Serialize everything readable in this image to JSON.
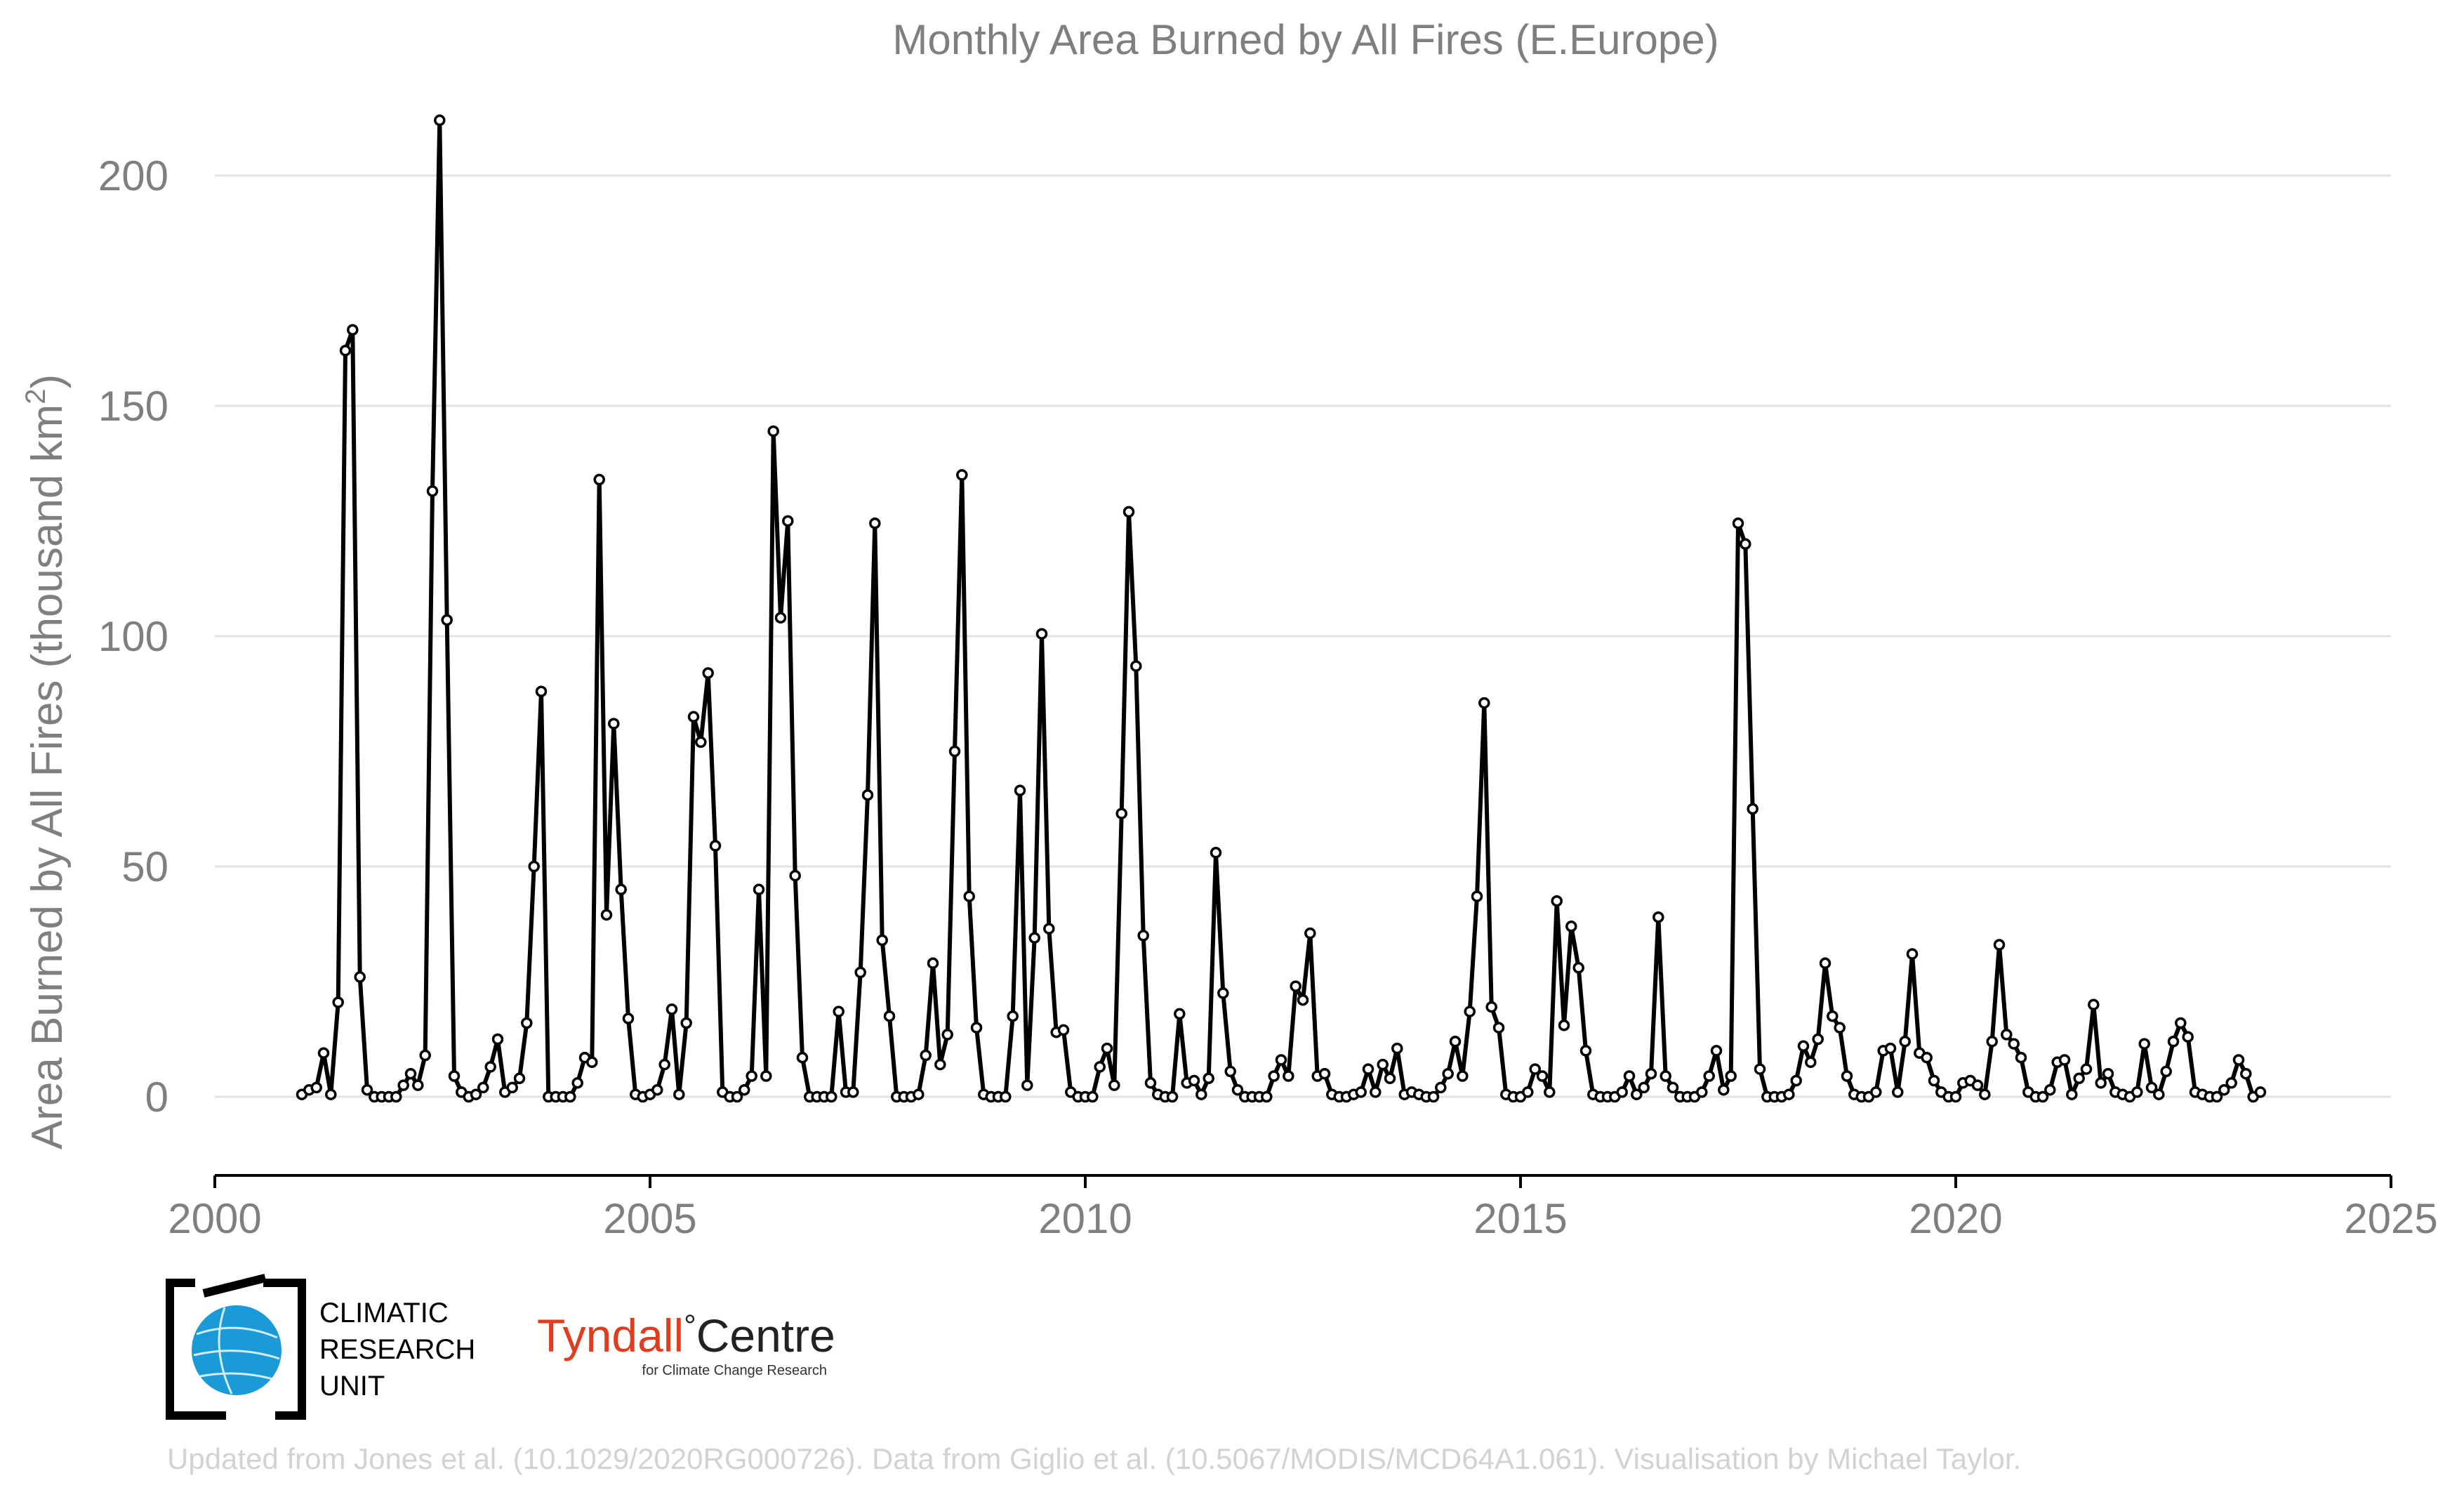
{
  "chart_data": {
    "type": "line",
    "title": "Monthly Area Burned by All Fires (E.Europe)",
    "ylabel": "Area Burned by All Fires (thousand km²)",
    "ylabel_parts": {
      "main": "Area Burned by All Fires (thousand km",
      "sup": "2",
      "close": ")"
    },
    "xlabel": "",
    "xlim": [
      2000,
      2025
    ],
    "ylim": [
      -17,
      217
    ],
    "x_ticks": [
      "2000",
      "2005",
      "2010",
      "2015",
      "2020",
      "2025"
    ],
    "y_ticks": [
      "0",
      "50",
      "100",
      "150",
      "200"
    ],
    "grid": "horizontal",
    "line_color": "#000000",
    "marker": "open-circle",
    "start": "2001-01",
    "values": [
      0.5,
      1.5,
      2,
      9.5,
      0.5,
      20.5,
      162,
      166.5,
      26,
      1.5,
      0,
      0,
      0,
      0,
      2.5,
      5,
      2.5,
      9,
      131.5,
      212,
      103.5,
      4.5,
      1,
      0,
      0.5,
      2,
      6.5,
      12.5,
      1,
      2,
      4,
      16,
      50,
      88,
      0,
      0,
      0,
      0,
      3,
      8.5,
      7.5,
      134,
      39.5,
      81,
      45,
      17,
      0.5,
      0,
      0.5,
      1.5,
      7,
      19,
      0.5,
      16,
      82.5,
      77,
      92,
      54.5,
      1,
      0,
      0,
      1.5,
      4.5,
      45,
      4.5,
      144.5,
      104,
      125,
      48,
      8.5,
      0,
      0,
      0,
      0,
      18.5,
      1,
      1,
      27,
      65.5,
      124.5,
      34,
      17.5,
      0,
      0,
      0,
      0.5,
      9,
      29,
      7,
      13.5,
      75,
      135,
      43.5,
      15,
      0.5,
      0,
      0,
      0,
      17.5,
      66.5,
      2.5,
      34.5,
      100.5,
      36.5,
      14,
      14.5,
      1,
      0,
      0,
      0,
      6.5,
      10.5,
      2.5,
      61.5,
      127,
      93.5,
      35,
      3,
      0.5,
      0,
      0,
      18,
      3,
      3.5,
      0.5,
      4,
      53,
      22.5,
      5.5,
      1.5,
      0,
      0,
      0,
      0,
      4.5,
      8,
      4.5,
      24,
      21,
      35.5,
      4.5,
      5,
      0.5,
      0,
      0,
      0.5,
      1,
      6,
      1,
      7,
      4,
      10.5,
      0.5,
      1,
      0.5,
      0,
      0,
      2,
      5,
      12,
      4.5,
      18.5,
      43.5,
      85.5,
      19.5,
      15,
      0.5,
      0,
      0,
      1,
      6,
      4.5,
      1,
      42.5,
      15.5,
      37,
      28,
      10,
      0.5,
      0,
      0,
      0,
      1,
      4.5,
      0.5,
      2,
      5,
      39,
      4.5,
      2,
      0,
      0,
      0,
      1,
      4.5,
      10,
      1.5,
      4.5,
      124.5,
      120,
      62.5,
      6,
      0,
      0,
      0,
      0.5,
      3.5,
      11,
      7.5,
      12.5,
      29,
      17.5,
      15,
      4.5,
      0.5,
      0,
      0,
      1,
      10,
      10.5,
      1,
      12,
      31,
      9.5,
      8.5,
      3.5,
      1,
      0,
      0,
      3,
      3.5,
      2.5,
      0.5,
      12,
      33,
      13.5,
      11.5,
      8.5,
      1,
      0,
      0,
      1.5,
      7.5,
      8,
      0.5,
      4,
      6,
      20,
      3,
      5,
      1,
      0.5,
      0,
      1,
      11.5,
      2,
      0.5,
      5.5,
      12,
      16,
      13,
      1,
      0.5,
      0,
      0,
      1.5,
      3,
      8,
      5,
      0,
      1
    ]
  },
  "logos": {
    "cru": {
      "lines": [
        "CLIMATIC",
        "RESEARCH",
        "UNIT"
      ],
      "color": "#1a9bd7"
    },
    "tyndall": {
      "name": "Tyndall",
      "degree": "°",
      "centre": "Centre",
      "subtitle": "for Climate Change Research",
      "color": "#e03c1f"
    }
  },
  "credit": "Updated from Jones et al. (10.1029/2020RG000726). Data from Giglio et al. (10.5067/MODIS/MCD64A1.061). Visualisation by Michael Taylor."
}
